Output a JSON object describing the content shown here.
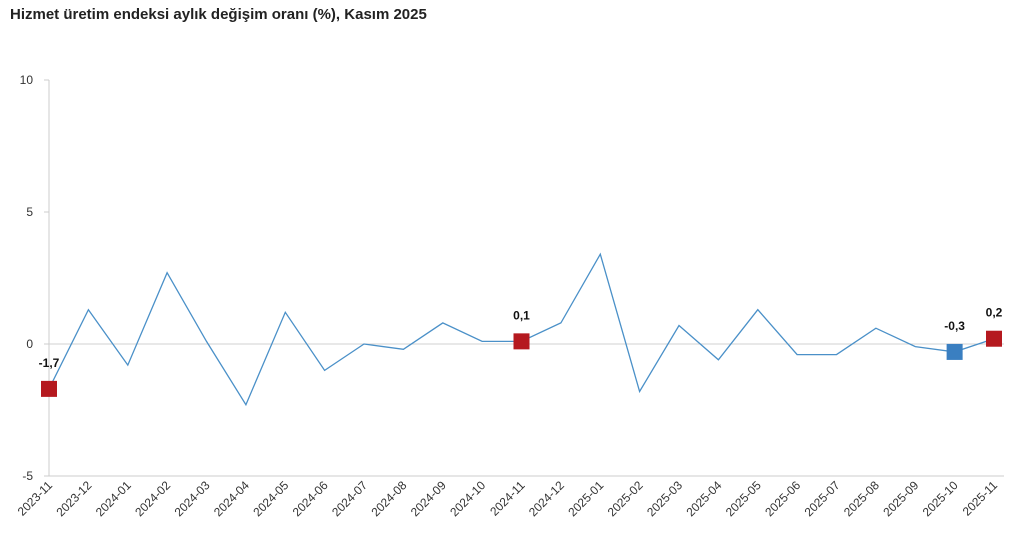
{
  "chart_data": {
    "type": "line",
    "title": "Hizmet üretim endeksi aylık değişim oranı (%), Kasım 2025",
    "xlabel": "",
    "ylabel": "",
    "ylim": [
      -5,
      10
    ],
    "yticks": [
      "10",
      "5",
      "0",
      "-5"
    ],
    "grid": "zero line only",
    "line_color": "#4a90c8",
    "categories": [
      "2023-11",
      "2023-12",
      "2024-01",
      "2024-02",
      "2024-03",
      "2024-04",
      "2024-05",
      "2024-06",
      "2024-07",
      "2024-08",
      "2024-09",
      "2024-10",
      "2024-11",
      "2024-12",
      "2025-01",
      "2025-02",
      "2025-03",
      "2025-04",
      "2025-05",
      "2025-06",
      "2025-07",
      "2025-08",
      "2025-09",
      "2025-10",
      "2025-11"
    ],
    "series": [
      {
        "values": [
          -1.7,
          1.3,
          -0.8,
          2.7,
          0.1,
          -2.3,
          1.2,
          -1.0,
          0.0,
          -0.2,
          0.8,
          0.1,
          0.1,
          0.8,
          3.4,
          -1.8,
          0.7,
          -0.6,
          1.3,
          -0.4,
          -0.4,
          0.6,
          -0.1,
          -0.3,
          0.2
        ]
      }
    ],
    "highlights": [
      {
        "index": 0,
        "label": "-1,7",
        "color": "#b5191f"
      },
      {
        "index": 12,
        "label": "0,1",
        "color": "#b5191f"
      },
      {
        "index": 23,
        "label": "-0,3",
        "color": "#3a7fc1"
      },
      {
        "index": 24,
        "label": "0,2",
        "color": "#b5191f"
      }
    ]
  }
}
